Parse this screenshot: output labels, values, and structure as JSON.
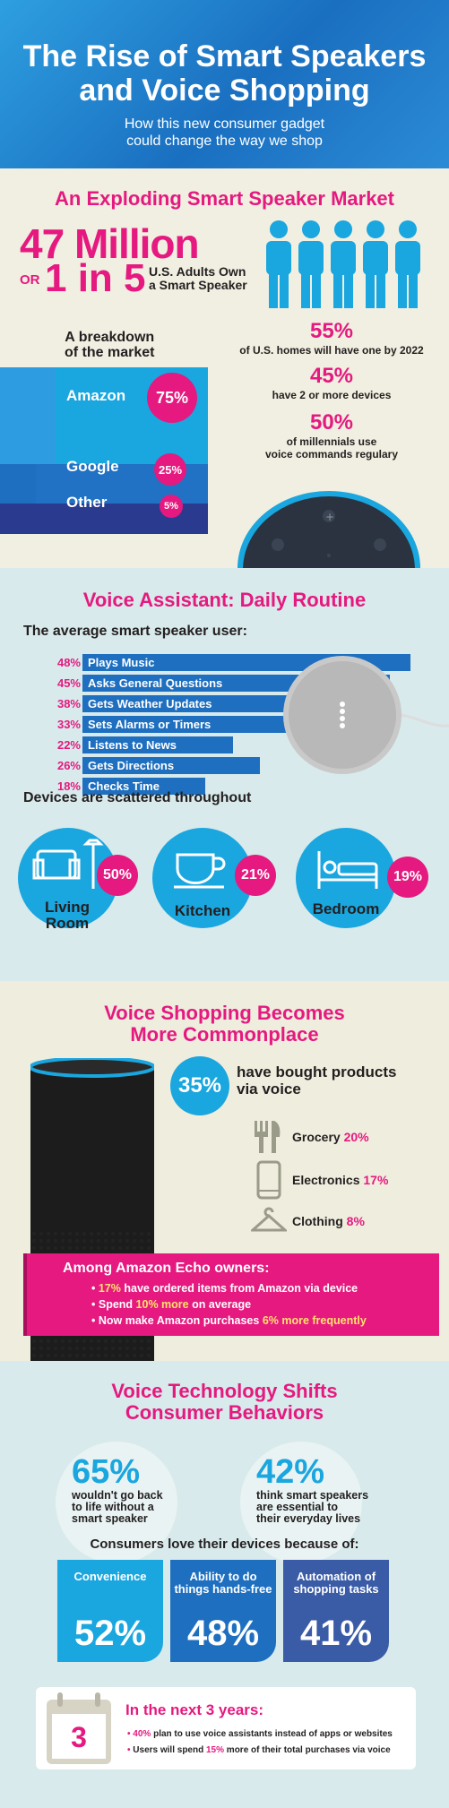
{
  "header": {
    "title_line1": "The Rise of Smart Speakers",
    "title_line2": "and Voice Shopping",
    "subtitle_line1": "How this new consumer gadget",
    "subtitle_line2": "could change the way we shop"
  },
  "market": {
    "title": "An Exploding Smart Speaker Market",
    "big_number": "47 Million",
    "or": "OR",
    "one_in_five": "1 in 5",
    "adults_line1": "U.S. Adults Own",
    "adults_line2": "a Smart Speaker",
    "breakdown_line1": "A breakdown",
    "breakdown_line2": "of the market",
    "shares": [
      {
        "name": "Amazon",
        "pct": "75%"
      },
      {
        "name": "Google",
        "pct": "25%"
      },
      {
        "name": "Other",
        "pct": "5%"
      }
    ],
    "stat1_pct": "55%",
    "stat1_text": "of U.S. homes will have one by 2022",
    "stat2_pct": "45%",
    "stat2_text": "have 2 or more devices",
    "stat3_pct": "50%",
    "stat3_text1": "of millennials use",
    "stat3_text2": "voice commands regulary"
  },
  "routine": {
    "title": "Voice Assistant: Daily Routine",
    "subtitle": "The average smart speaker user:",
    "tasks": [
      {
        "pct": "48%",
        "label": "Plays Music",
        "value": 48
      },
      {
        "pct": "45%",
        "label": "Asks General Questions",
        "value": 45
      },
      {
        "pct": "38%",
        "label": "Gets Weather Updates",
        "value": 38
      },
      {
        "pct": "33%",
        "label": "Sets Alarms or Timers",
        "value": 33
      },
      {
        "pct": "22%",
        "label": "Listens to News",
        "value": 22
      },
      {
        "pct": "26%",
        "label": "Gets Directions",
        "value": 26
      },
      {
        "pct": "18%",
        "label": "Checks Time",
        "value": 18
      }
    ],
    "devices_title": "Devices are scattered throughout",
    "rooms": [
      {
        "name_line1": "Living",
        "name_line2": "Room",
        "pct": "50%"
      },
      {
        "name_line1": "Kitchen",
        "name_line2": "",
        "pct": "21%"
      },
      {
        "name_line1": "Bedroom",
        "name_line2": "",
        "pct": "19%"
      }
    ]
  },
  "shopping": {
    "title_line1": "Voice Shopping Becomes",
    "title_line2": "More Commonplace",
    "bought_pct": "35%",
    "bought_line1": "have bought products",
    "bought_line2": "via voice",
    "categories": [
      {
        "name": "Grocery",
        "pct": "20%",
        "icon": "utensils-icon"
      },
      {
        "name": "Electronics",
        "pct": "17%",
        "icon": "phone-icon"
      },
      {
        "name": "Clothing",
        "pct": "8%",
        "icon": "hanger-icon"
      }
    ],
    "echo_title": "Among Amazon Echo owners:",
    "echo_b1_pct": "17%",
    "echo_b1_text": "have ordered items from Amazon via device",
    "echo_b2_pre": "Spend",
    "echo_b2_pct": "10% more",
    "echo_b2_text": "on average",
    "echo_b3_pre": "Now make Amazon purchases",
    "echo_b3_pct": "6% more frequently"
  },
  "behaviors": {
    "title_line1": "Voice Technology Shifts",
    "title_line2": "Consumer Behaviors",
    "left_pct": "65%",
    "left_l1": "wouldn't go back",
    "left_l2": "to life without a",
    "left_l3": "smart speaker",
    "right_pct": "42%",
    "right_l1": "think smart speakers",
    "right_l2": "are essential to",
    "right_l3": "their everyday lives",
    "love_title": "Consumers love their devices because of:",
    "reasons": [
      {
        "l1": "Convenience",
        "l2": "",
        "pct": "52%",
        "color": "#1aa6df"
      },
      {
        "l1": "Ability to do",
        "l2": "things hands-free",
        "pct": "48%",
        "color": "#1e6fc0"
      },
      {
        "l1": "Automation of",
        "l2": "shopping tasks",
        "pct": "41%",
        "color": "#3a5ba6"
      }
    ],
    "calendar_num": "3",
    "next_title": "In the next 3 years:",
    "n1_pct": "40%",
    "n1_text": "plan to use voice assistants instead of apps or websites",
    "n2_pre": "Users will spend",
    "n2_pct": "15%",
    "n2_text": "more of their total purchases via voice"
  }
}
